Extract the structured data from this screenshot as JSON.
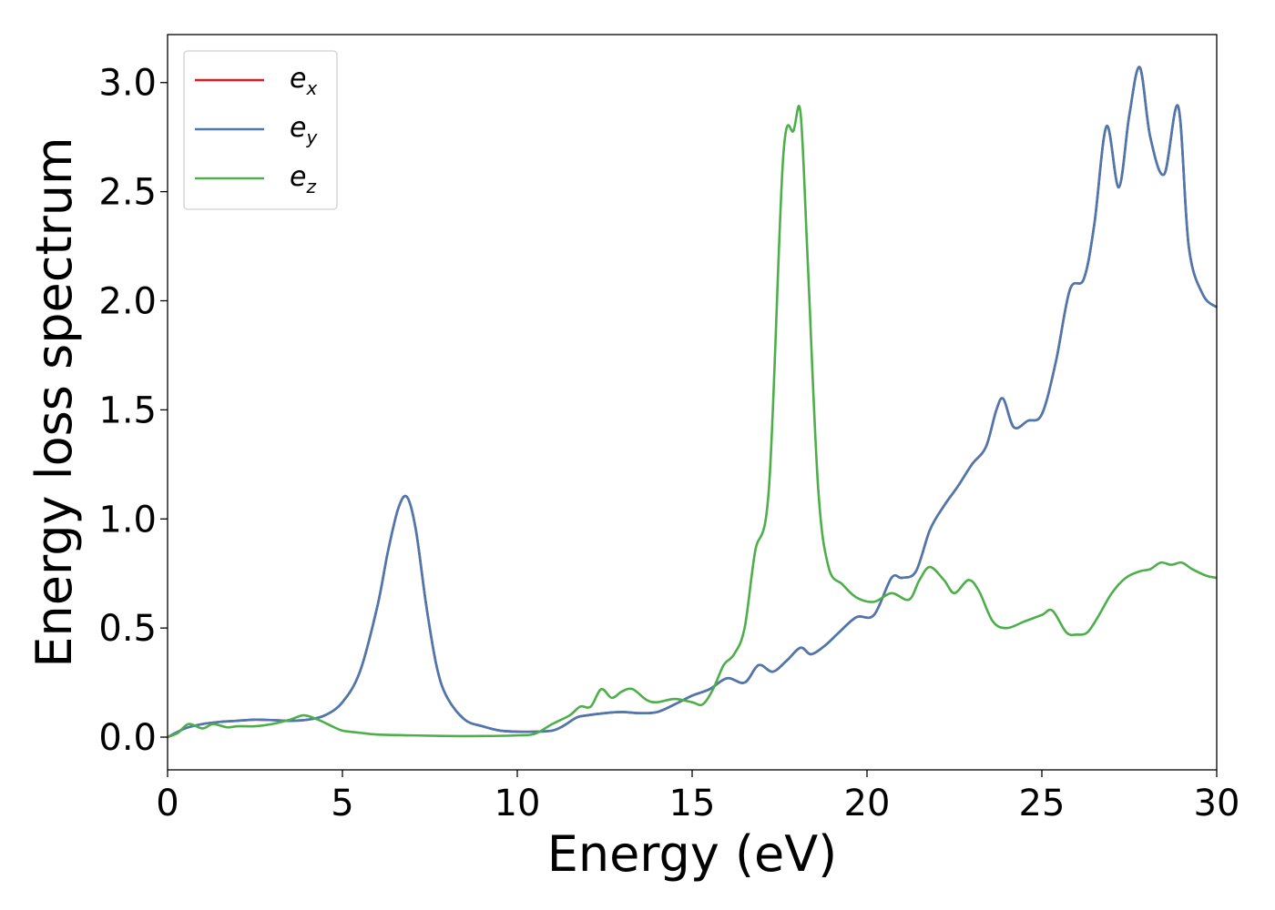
{
  "chart_data": {
    "type": "line",
    "xlabel": "Energy (eV)",
    "ylabel": "Energy loss spectrum",
    "xlim": [
      0,
      30
    ],
    "ylim": [
      -0.15,
      3.22
    ],
    "xticks": [
      0,
      5,
      10,
      15,
      20,
      25,
      30
    ],
    "xtick_labels": [
      "0",
      "5",
      "10",
      "15",
      "20",
      "25",
      "30"
    ],
    "yticks": [
      0.0,
      0.5,
      1.0,
      1.5,
      2.0,
      2.5,
      3.0
    ],
    "ytick_labels": [
      "0.0",
      "0.5",
      "1.0",
      "1.5",
      "2.0",
      "2.5",
      "3.0"
    ],
    "grid": false,
    "legend_position": "top-left",
    "series": [
      {
        "name": "e",
        "sub": "x",
        "color": "#e41a1c",
        "x": [
          0,
          0.5,
          1,
          1.5,
          2,
          2.5,
          3,
          3.5,
          4,
          4.5,
          5,
          5.5,
          6,
          6.3,
          6.6,
          6.85,
          7.1,
          7.4,
          7.7,
          8,
          8.5,
          9,
          9.5,
          10,
          10.5,
          11,
          11.3,
          11.7,
          12,
          12.5,
          13,
          13.5,
          14,
          14.5,
          15,
          15.5,
          16,
          16.5,
          16.9,
          17.3,
          17.7,
          18.1,
          18.4,
          18.8,
          19.2,
          19.7,
          20.2,
          20.7,
          21,
          21.4,
          21.8,
          22.2,
          22.6,
          23,
          23.4,
          23.7,
          23.9,
          24.2,
          24.6,
          25,
          25.4,
          25.8,
          26.2,
          26.5,
          26.85,
          27.2,
          27.5,
          27.8,
          28.1,
          28.5,
          28.9,
          29.2,
          29.6,
          30
        ],
        "y": [
          0,
          0.04,
          0.06,
          0.07,
          0.075,
          0.08,
          0.078,
          0.075,
          0.08,
          0.1,
          0.16,
          0.3,
          0.6,
          0.85,
          1.05,
          1.1,
          0.95,
          0.6,
          0.32,
          0.18,
          0.08,
          0.05,
          0.03,
          0.025,
          0.025,
          0.03,
          0.05,
          0.09,
          0.1,
          0.11,
          0.115,
          0.11,
          0.115,
          0.15,
          0.19,
          0.22,
          0.27,
          0.25,
          0.33,
          0.3,
          0.35,
          0.41,
          0.38,
          0.42,
          0.48,
          0.55,
          0.56,
          0.73,
          0.73,
          0.76,
          0.95,
          1.06,
          1.15,
          1.25,
          1.33,
          1.5,
          1.55,
          1.42,
          1.45,
          1.48,
          1.72,
          2.05,
          2.1,
          2.35,
          2.8,
          2.52,
          2.85,
          3.07,
          2.75,
          2.58,
          2.89,
          2.25,
          2.03,
          1.97
        ]
      },
      {
        "name": "e",
        "sub": "y",
        "color": "#4a78b0",
        "x": [
          0,
          0.5,
          1,
          1.5,
          2,
          2.5,
          3,
          3.5,
          4,
          4.5,
          5,
          5.5,
          6,
          6.3,
          6.6,
          6.85,
          7.1,
          7.4,
          7.7,
          8,
          8.5,
          9,
          9.5,
          10,
          10.5,
          11,
          11.3,
          11.7,
          12,
          12.5,
          13,
          13.5,
          14,
          14.5,
          15,
          15.5,
          16,
          16.5,
          16.9,
          17.3,
          17.7,
          18.1,
          18.4,
          18.8,
          19.2,
          19.7,
          20.2,
          20.7,
          21,
          21.4,
          21.8,
          22.2,
          22.6,
          23,
          23.4,
          23.7,
          23.9,
          24.2,
          24.6,
          25,
          25.4,
          25.8,
          26.2,
          26.5,
          26.85,
          27.2,
          27.5,
          27.8,
          28.1,
          28.5,
          28.9,
          29.2,
          29.6,
          30
        ],
        "y": [
          0,
          0.04,
          0.06,
          0.07,
          0.075,
          0.08,
          0.078,
          0.075,
          0.08,
          0.1,
          0.16,
          0.3,
          0.6,
          0.85,
          1.05,
          1.1,
          0.95,
          0.6,
          0.32,
          0.18,
          0.08,
          0.05,
          0.03,
          0.025,
          0.025,
          0.03,
          0.05,
          0.09,
          0.1,
          0.11,
          0.115,
          0.11,
          0.115,
          0.15,
          0.19,
          0.22,
          0.27,
          0.25,
          0.33,
          0.3,
          0.35,
          0.41,
          0.38,
          0.42,
          0.48,
          0.55,
          0.56,
          0.73,
          0.73,
          0.76,
          0.95,
          1.06,
          1.15,
          1.25,
          1.33,
          1.5,
          1.55,
          1.42,
          1.45,
          1.48,
          1.72,
          2.05,
          2.1,
          2.35,
          2.8,
          2.52,
          2.85,
          3.07,
          2.75,
          2.58,
          2.89,
          2.25,
          2.03,
          1.97
        ]
      },
      {
        "name": "e",
        "sub": "z",
        "color": "#4daf4a",
        "x": [
          0,
          0.3,
          0.6,
          1,
          1.3,
          1.7,
          2,
          2.5,
          3,
          3.5,
          3.9,
          4.3,
          4.7,
          5,
          5.5,
          6,
          7,
          8,
          9,
          10,
          10.5,
          11,
          11.5,
          11.8,
          12.1,
          12.4,
          12.7,
          13,
          13.3,
          13.7,
          14,
          14.5,
          15,
          15.3,
          15.6,
          15.9,
          16.2,
          16.5,
          16.8,
          17.2,
          17.6,
          17.9,
          18.1,
          18.3,
          18.6,
          18.9,
          19.3,
          19.7,
          20.2,
          20.7,
          21.2,
          21.5,
          21.8,
          22.2,
          22.5,
          22.9,
          23.2,
          23.6,
          24,
          24.5,
          25,
          25.3,
          25.7,
          26,
          26.3,
          26.6,
          27,
          27.4,
          27.8,
          28.1,
          28.4,
          28.7,
          29,
          29.3,
          29.7,
          30
        ],
        "y": [
          0,
          0.02,
          0.06,
          0.04,
          0.06,
          0.045,
          0.05,
          0.05,
          0.06,
          0.08,
          0.1,
          0.08,
          0.05,
          0.03,
          0.02,
          0.012,
          0.008,
          0.005,
          0.005,
          0.008,
          0.015,
          0.06,
          0.1,
          0.14,
          0.14,
          0.22,
          0.18,
          0.21,
          0.22,
          0.17,
          0.16,
          0.175,
          0.16,
          0.15,
          0.22,
          0.33,
          0.38,
          0.5,
          0.85,
          1.15,
          2.65,
          2.78,
          2.86,
          2.2,
          1.15,
          0.78,
          0.7,
          0.64,
          0.62,
          0.66,
          0.63,
          0.72,
          0.78,
          0.72,
          0.66,
          0.72,
          0.67,
          0.53,
          0.5,
          0.53,
          0.56,
          0.58,
          0.48,
          0.47,
          0.48,
          0.55,
          0.66,
          0.73,
          0.76,
          0.77,
          0.8,
          0.79,
          0.8,
          0.77,
          0.74,
          0.73
        ]
      }
    ]
  }
}
